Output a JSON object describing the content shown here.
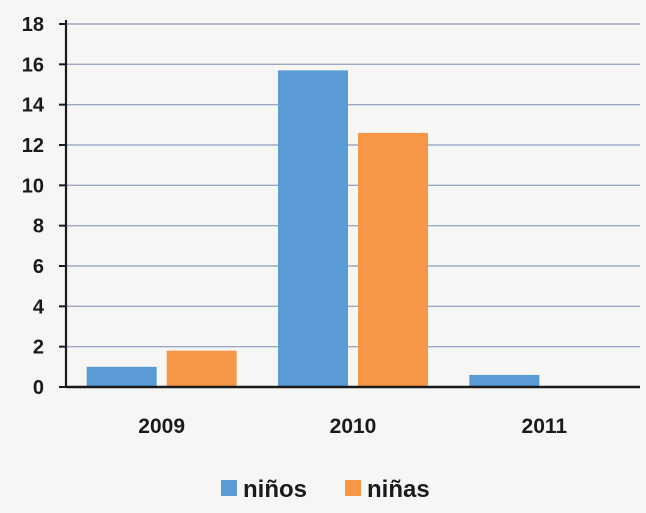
{
  "chart_data": {
    "type": "bar",
    "categories": [
      "2009",
      "2010",
      "2011"
    ],
    "series": [
      {
        "name": "niños",
        "values": [
          1,
          15.7,
          0.6
        ],
        "color": "#5b9bd5"
      },
      {
        "name": "niñas",
        "values": [
          1.8,
          12.6,
          0
        ],
        "color": "#f79646"
      }
    ],
    "ylim": [
      0,
      18
    ],
    "yticks": [
      0,
      2,
      4,
      6,
      8,
      10,
      12,
      14,
      16,
      18
    ],
    "ytick_labels": [
      "0",
      "2",
      "4",
      "6",
      "8",
      "10",
      "12",
      "14",
      "16",
      "18"
    ],
    "grid": true,
    "legend_position": "bottom",
    "title": "",
    "xlabel": "",
    "ylabel": "",
    "colors": {
      "background": "#f6f6f4",
      "gridline": "#9ea8c4",
      "axis": "#1a1a1a",
      "text": "#1a1a1a"
    }
  }
}
